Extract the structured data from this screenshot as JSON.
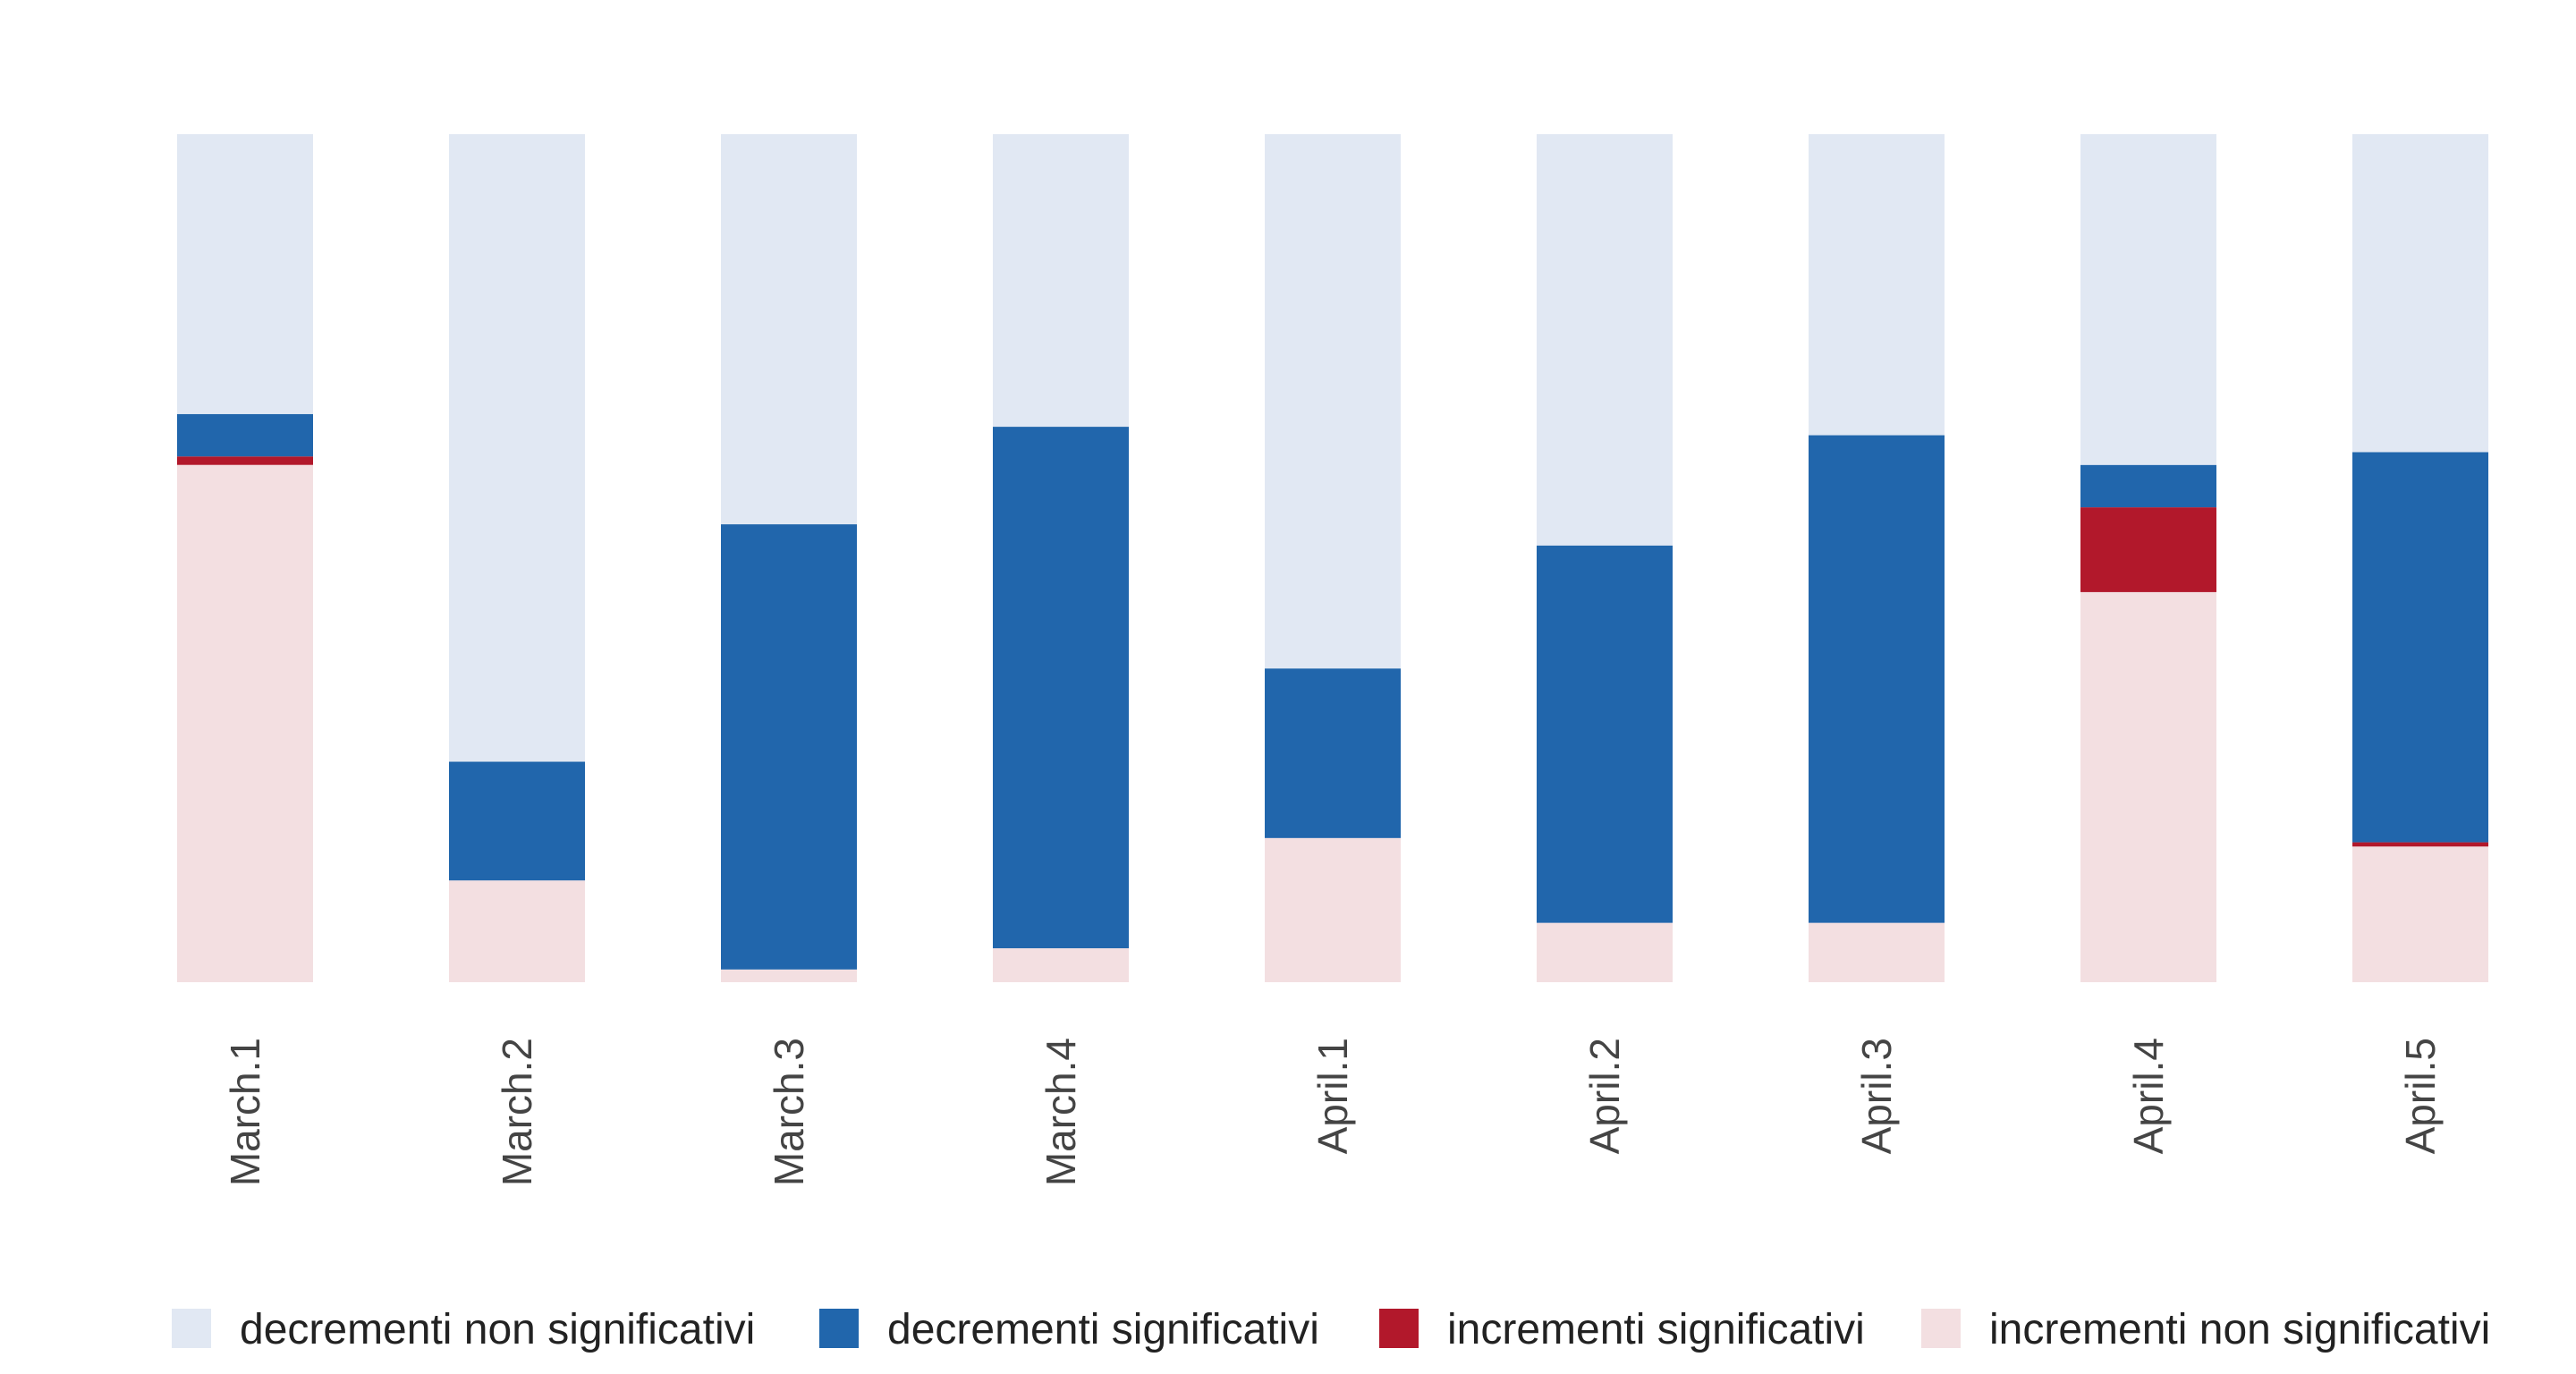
{
  "chart_data": {
    "type": "bar",
    "stacked": true,
    "percent_scale": true,
    "title": "",
    "xlabel": "",
    "ylabel": "",
    "ylim": [
      0,
      100
    ],
    "grid": false,
    "legend_position": "bottom",
    "categories": [
      "March.1",
      "March.2",
      "March.3",
      "March.4",
      "April.1",
      "April.2",
      "April.3",
      "April.4",
      "April.5"
    ],
    "series": [
      {
        "name": "incrementi non significativi",
        "color": "#f3dfe1",
        "values": [
          61,
          12,
          1.5,
          4,
          17,
          7,
          7,
          46,
          16
        ]
      },
      {
        "name": "incrementi significativi",
        "color": "#b2182b",
        "values": [
          1,
          0,
          0,
          0,
          0,
          0,
          0,
          10,
          0.5
        ]
      },
      {
        "name": "decrementi significativi",
        "color": "#2166ac",
        "values": [
          5,
          14,
          52.5,
          61.5,
          20,
          44.5,
          57.5,
          5,
          46
        ]
      },
      {
        "name": "decrementi non significativi",
        "color": "#e1e8f3",
        "values": [
          33,
          74,
          46,
          34.5,
          63,
          48.5,
          35.5,
          39,
          37.5
        ]
      }
    ],
    "legend": [
      {
        "name": "decrementi non significativi",
        "color": "#e1e8f3"
      },
      {
        "name": "decrementi significativi",
        "color": "#2166ac"
      },
      {
        "name": "incrementi significativi",
        "color": "#b2182b"
      },
      {
        "name": "incrementi non significativi",
        "color": "#f3dfe1"
      }
    ]
  }
}
